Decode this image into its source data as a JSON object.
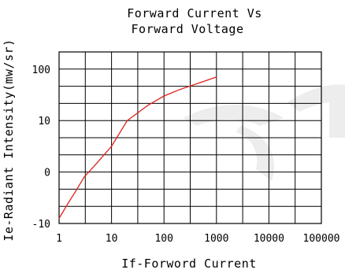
{
  "chart_data": {
    "type": "line",
    "title": "Forward Current Vs\nForward Voltage",
    "xlabel": "If-Forword Current",
    "ylabel": "Ie-Radiant Intensity(mw/sr)",
    "x_scale": "log",
    "xlim": [
      1,
      100000
    ],
    "ylim": [
      -10,
      100
    ],
    "x_tick_labels": [
      "1",
      "10",
      "100",
      "1000",
      "10000",
      "100000"
    ],
    "y_tick_labels": [
      "-10",
      "0",
      "10",
      "100"
    ],
    "grid": true,
    "series": [
      {
        "color": "#e0201c",
        "points": [
          {
            "x": 1,
            "y": -9
          },
          {
            "x": 1.5,
            "y": -6
          },
          {
            "x": 2,
            "y": -4
          },
          {
            "x": 3,
            "y": -1
          },
          {
            "x": 5,
            "y": 1.5
          },
          {
            "x": 10,
            "y": 5
          },
          {
            "x": 20,
            "y": 10
          },
          {
            "x": 50,
            "y": 20
          },
          {
            "x": 100,
            "y": 30
          },
          {
            "x": 200,
            "y": 40
          },
          {
            "x": 500,
            "y": 55
          },
          {
            "x": 1000,
            "y": 70
          }
        ]
      }
    ]
  }
}
